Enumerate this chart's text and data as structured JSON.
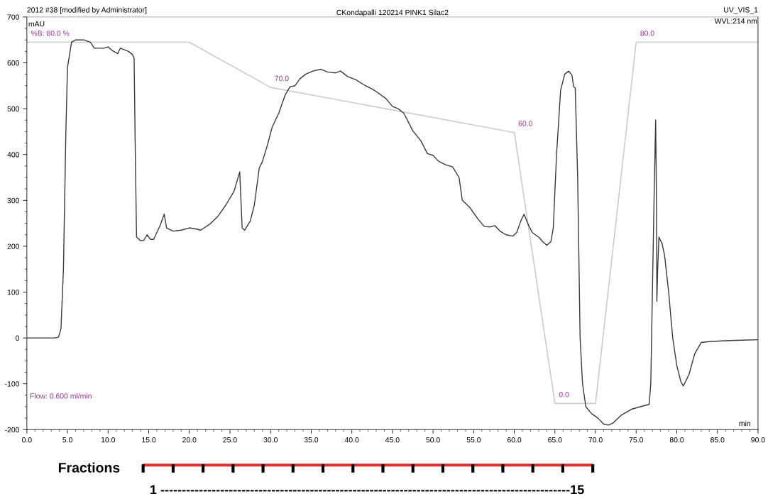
{
  "chart_data": {
    "type": "line",
    "title": "CKondapalli 120214 PINK1 Silac2",
    "xlabel": "min",
    "ylabel": "mAU",
    "annotations": [
      "2012 #38 [modified by Administrator]",
      "UV_VIS_1",
      "WVL:214 nm",
      "Flow: 0.600 ml/min",
      "Fractions",
      "1 ------------------------------------------------------------------------------------------------15"
    ],
    "xlim": [
      0,
      90
    ],
    "ylim": [
      -200,
      700
    ],
    "y2lim": [
      -5.8,
      85.6
    ],
    "xticks": [
      {
        "value": 0,
        "label": "0.0"
      },
      {
        "value": 5,
        "label": "5.0"
      },
      {
        "value": 10,
        "label": "10.0"
      },
      {
        "value": 15,
        "label": "15.0"
      },
      {
        "value": 20,
        "label": "20.0"
      },
      {
        "value": 25,
        "label": "25.0"
      },
      {
        "value": 30,
        "label": "30.0"
      },
      {
        "value": 35,
        "label": "35.0"
      },
      {
        "value": 40,
        "label": "40.0"
      },
      {
        "value": 45,
        "label": "45.0"
      },
      {
        "value": 50,
        "label": "50.0"
      },
      {
        "value": 55,
        "label": "55.0"
      },
      {
        "value": 60,
        "label": "60.0"
      },
      {
        "value": 65,
        "label": "65.0"
      },
      {
        "value": 70,
        "label": "70.0"
      },
      {
        "value": 75,
        "label": "75.0"
      },
      {
        "value": 80,
        "label": "80.0"
      },
      {
        "value": 85,
        "label": "85.0"
      },
      {
        "value": 90,
        "label": "90.0"
      }
    ],
    "yticks": [
      -200,
      -100,
      0,
      100,
      200,
      300,
      400,
      500,
      600,
      700
    ],
    "grid": false,
    "legend": false,
    "marker": "none",
    "line_style": "solid",
    "series": [
      {
        "color": "#3a3a3a",
        "x": [
          0,
          3.5,
          3.9,
          4.2,
          4.5,
          4.8,
          5.0,
          5.5,
          6.0,
          7.0,
          7.8,
          8.3,
          9.5,
          10.0,
          10.5,
          11.2,
          11.5,
          12.5,
          13.0,
          13.2,
          13.35,
          13.5,
          14.0,
          14.4,
          14.8,
          15.2,
          15.6,
          16.4,
          16.9,
          17.2,
          18.0,
          19.0,
          20.0,
          21.0,
          21.4,
          22.5,
          23.5,
          24.5,
          25.5,
          26.2,
          26.5,
          26.8,
          27.5,
          28.0,
          28.6,
          29.0,
          29.6,
          30.2,
          31.0,
          31.8,
          32.4,
          33.0,
          33.6,
          34.3,
          35.2,
          36.2,
          37.0,
          38.0,
          38.6,
          39.5,
          40.5,
          41.5,
          42.5,
          43.2,
          44.2,
          45.0,
          45.7,
          46.4,
          47.5,
          48.5,
          49.3,
          50.0,
          50.7,
          51.5,
          52.4,
          53.2,
          53.6,
          54.5,
          55.5,
          56.3,
          57.0,
          57.6,
          58.3,
          59.0,
          59.8,
          60.3,
          60.8,
          61.2,
          61.7,
          62.2,
          63.0,
          63.5,
          64.0,
          64.5,
          64.8,
          65.2,
          65.7,
          66.2,
          66.7,
          67.1,
          67.3,
          67.5,
          67.8,
          68.1,
          68.4,
          68.8,
          69.5,
          70.3,
          71.0,
          71.6,
          72.2,
          73.2,
          74.5,
          75.5,
          76.6,
          76.8,
          77.0,
          77.2,
          77.4,
          77.5,
          77.55,
          77.65,
          77.8,
          78.2,
          78.5,
          79.0,
          79.5,
          80.0,
          80.5,
          80.8,
          81.5,
          82.2,
          83.0,
          84.0,
          86.0,
          88.0,
          90.0
        ],
        "values": [
          0,
          0,
          2,
          20,
          150,
          450,
          590,
          645,
          650,
          650,
          645,
          632,
          632,
          635,
          627,
          620,
          632,
          625,
          618,
          610,
          400,
          220,
          212,
          213,
          225,
          215,
          215,
          245,
          270,
          240,
          233,
          235,
          240,
          237,
          235,
          248,
          265,
          290,
          320,
          362,
          240,
          235,
          255,
          290,
          370,
          385,
          420,
          460,
          490,
          530,
          548,
          550,
          565,
          575,
          582,
          586,
          580,
          578,
          582,
          570,
          563,
          552,
          543,
          535,
          522,
          505,
          500,
          490,
          452,
          430,
          402,
          398,
          385,
          378,
          373,
          350,
          300,
          285,
          260,
          243,
          242,
          245,
          232,
          225,
          222,
          230,
          255,
          270,
          248,
          230,
          220,
          210,
          202,
          210,
          240,
          400,
          540,
          575,
          582,
          573,
          548,
          545,
          350,
          0,
          -100,
          -150,
          -165,
          -175,
          -188,
          -190,
          -185,
          -168,
          -155,
          -150,
          -145,
          -100,
          100,
          300,
          475,
          300,
          80,
          150,
          220,
          205,
          180,
          100,
          0,
          -60,
          -95,
          -105,
          -80,
          -35,
          -10,
          -8,
          -6,
          -5,
          -4
        ]
      },
      {
        "color": "#cccccc",
        "axis": "y2",
        "x": [
          0,
          20,
          30,
          60,
          65,
          70,
          75,
          90
        ],
        "values": [
          80,
          80,
          70,
          60,
          0,
          0,
          80,
          80
        ],
        "value_labels": [
          "%B: 80.0 %",
          null,
          "70.0",
          "60.0",
          "0.0",
          null,
          "80.0",
          null
        ]
      }
    ]
  }
}
